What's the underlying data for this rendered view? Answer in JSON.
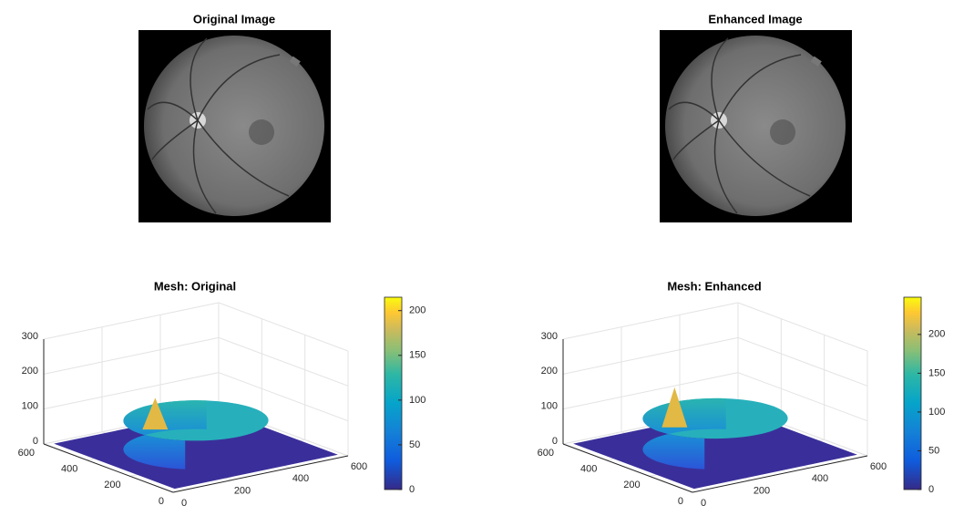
{
  "chart_data": [
    {
      "type": "image",
      "title": "Original Image"
    },
    {
      "type": "image",
      "title": "Enhanced Image"
    },
    {
      "type": "mesh",
      "title": "Mesh: Original",
      "xlim": [
        0,
        600
      ],
      "ylim": [
        0,
        600
      ],
      "zlim": [
        0,
        300
      ],
      "xticks": [
        0,
        200,
        400,
        600
      ],
      "yticks": [
        0,
        200,
        400,
        600
      ],
      "zticks": [
        0,
        100,
        200,
        300
      ],
      "clim": [
        0,
        215
      ],
      "cticks": [
        0,
        50,
        100,
        150,
        200
      ]
    },
    {
      "type": "mesh",
      "title": "Mesh: Enhanced",
      "xlim": [
        0,
        600
      ],
      "ylim": [
        0,
        600
      ],
      "zlim": [
        0,
        300
      ],
      "xticks": [
        0,
        200,
        400,
        600
      ],
      "yticks": [
        0,
        200,
        400,
        600
      ],
      "zticks": [
        0,
        100,
        200,
        300
      ],
      "clim": [
        0,
        248
      ],
      "cticks": [
        0,
        50,
        100,
        150,
        200
      ]
    }
  ]
}
